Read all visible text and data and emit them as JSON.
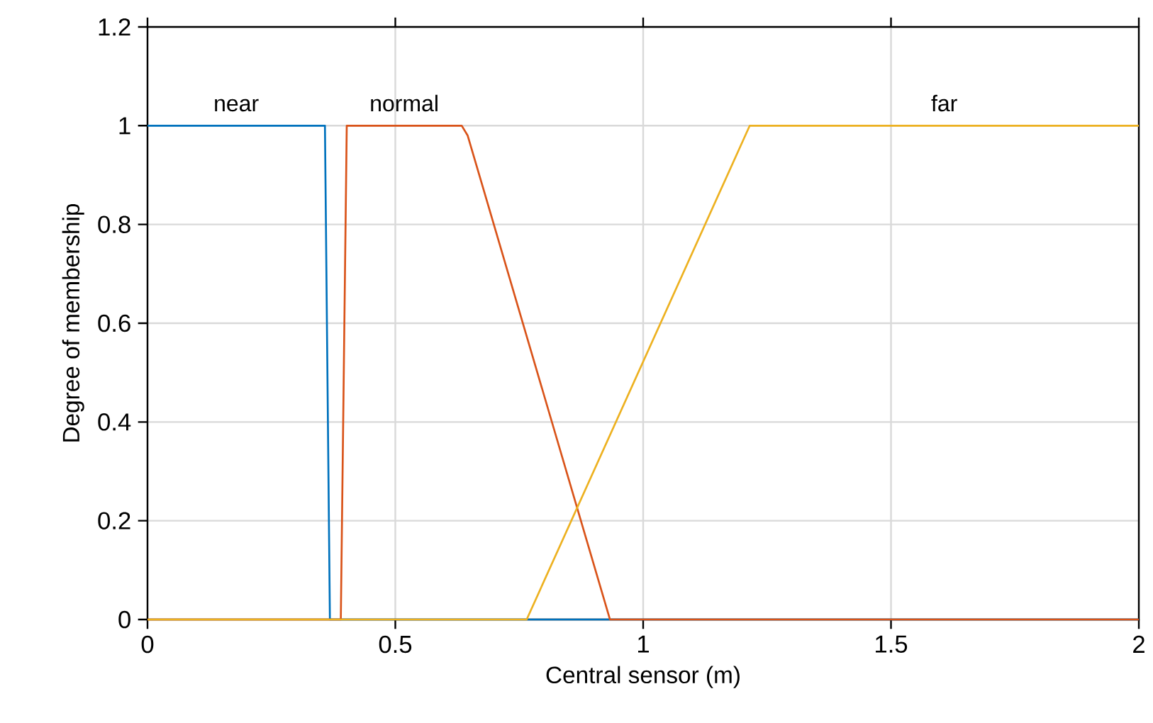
{
  "chart_data": {
    "type": "line",
    "xlabel": "Central sensor (m)",
    "ylabel": "Degree of membership",
    "xlim": [
      0,
      2
    ],
    "ylim": [
      0,
      1.2
    ],
    "xticks": [
      0,
      0.5,
      1,
      1.5,
      2
    ],
    "yticks": [
      0,
      0.2,
      0.4,
      0.6,
      0.8,
      1,
      1.2
    ],
    "grid": true,
    "marker": "none",
    "line_style": "solid",
    "series": [
      {
        "name": "near",
        "color": "#0072bd",
        "x": [
          0,
          0.358,
          0.368,
          2
        ],
        "values": [
          1,
          1,
          0,
          0
        ]
      },
      {
        "name": "normal",
        "color": "#d95319",
        "x": [
          0,
          0.39,
          0.402,
          0.634,
          0.646,
          0.933,
          2
        ],
        "values": [
          0,
          0,
          1,
          1,
          0.98,
          0,
          0
        ]
      },
      {
        "name": "far",
        "color": "#edb120",
        "x": [
          0,
          0.765,
          1.215,
          2
        ],
        "values": [
          0,
          0,
          1,
          1
        ]
      }
    ]
  }
}
